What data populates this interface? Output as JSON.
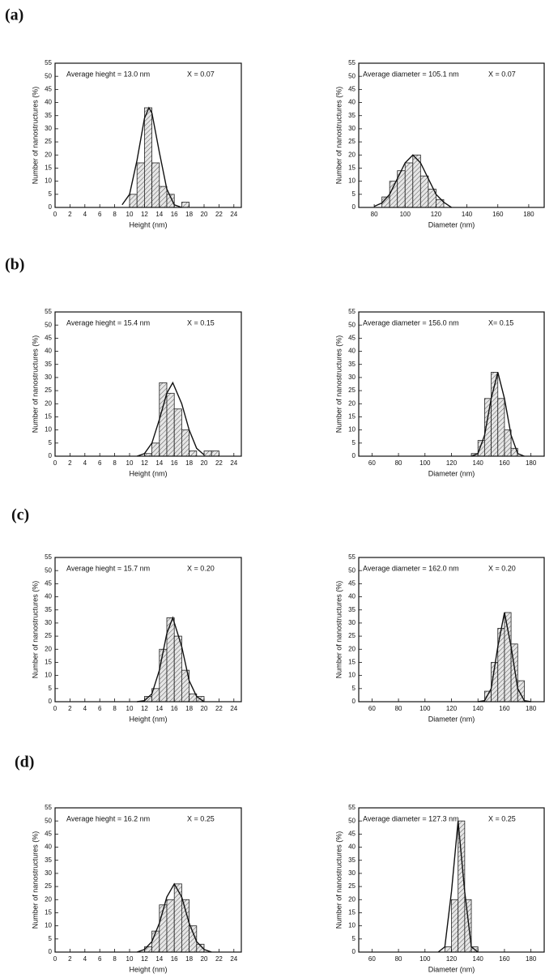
{
  "panels": [
    "(a)",
    "(b)",
    "(c)",
    "(d)"
  ],
  "chart_data": [
    {
      "type": "histogram",
      "annotations": [
        "Average hieght = 13.0 nm",
        "X = 0.07"
      ],
      "x_label": "Height (nm)",
      "y_label": "Number of nanostructures (%)",
      "bins": [
        10,
        11,
        12,
        13,
        14,
        15,
        16,
        17,
        18
      ],
      "values": [
        5,
        17,
        38,
        17,
        8,
        5,
        0,
        2
      ],
      "fit": {
        "x": [
          9,
          10,
          11,
          12,
          12.6,
          13,
          14,
          15,
          16,
          17
        ],
        "values": [
          1,
          5,
          18,
          34,
          38,
          36,
          21,
          7,
          1,
          0
        ]
      },
      "xlim": [
        0,
        25
      ],
      "xticks": [
        0,
        2,
        4,
        6,
        8,
        10,
        12,
        14,
        16,
        18,
        20,
        22,
        24
      ],
      "ylim": [
        0,
        55
      ],
      "yticks": [
        0,
        5,
        10,
        15,
        20,
        25,
        30,
        35,
        40,
        45,
        50,
        55
      ]
    },
    {
      "type": "histogram",
      "annotations": [
        "Average diameter = 105.1 nm",
        "X = 0.07"
      ],
      "x_label": "Diameter (nm)",
      "y_label": "Number of nanostructures (%)",
      "bins": [
        85,
        90,
        95,
        100,
        105,
        110,
        115,
        120,
        125
      ],
      "values": [
        4,
        10,
        14,
        17,
        20,
        12,
        7,
        3
      ],
      "fit": {
        "x": [
          80,
          85,
          90,
          95,
          100,
          105,
          110,
          115,
          120,
          125,
          130
        ],
        "values": [
          0.4,
          1.7,
          5,
          11,
          17,
          20,
          17,
          11,
          5,
          2,
          0
        ]
      },
      "xlim": [
        70,
        190
      ],
      "xticks": [
        80,
        100,
        120,
        140,
        160,
        180
      ],
      "ylim": [
        0,
        55
      ],
      "yticks": [
        0,
        5,
        10,
        15,
        20,
        25,
        30,
        35,
        40,
        45,
        50,
        55
      ]
    },
    {
      "type": "histogram",
      "annotations": [
        "Average hieght = 15.4 nm",
        "X = 0.15"
      ],
      "x_label": "Height (nm)",
      "y_label": "Number of nanostructures (%)",
      "bins": [
        12,
        13,
        14,
        15,
        16,
        17,
        18,
        19,
        20,
        21,
        22
      ],
      "values": [
        1,
        5,
        28,
        24,
        18,
        10,
        2,
        0,
        2,
        2
      ],
      "fit": {
        "x": [
          11,
          12,
          13,
          14,
          15,
          15.8,
          17,
          18,
          19,
          20
        ],
        "values": [
          0,
          1,
          5,
          14,
          24,
          28,
          20,
          10,
          3,
          0.5
        ]
      },
      "xlim": [
        0,
        25
      ],
      "xticks": [
        0,
        2,
        4,
        6,
        8,
        10,
        12,
        14,
        16,
        18,
        20,
        22,
        24
      ],
      "ylim": [
        0,
        55
      ],
      "yticks": [
        0,
        5,
        10,
        15,
        20,
        25,
        30,
        35,
        40,
        45,
        50,
        55
      ]
    },
    {
      "type": "histogram",
      "annotations": [
        "Average diameter = 156.0 nm",
        "X= 0.15"
      ],
      "x_label": "Diameter (nm)",
      "y_label": "Number of nanostructures (%)",
      "bins": [
        135,
        140,
        145,
        150,
        155,
        160,
        165,
        170
      ],
      "values": [
        1,
        6,
        22,
        32,
        22,
        10,
        3
      ],
      "fit": {
        "x": [
          135,
          140,
          145,
          150,
          155,
          160,
          165,
          170,
          175
        ],
        "values": [
          0,
          1,
          8,
          22,
          32,
          22,
          8,
          1,
          0
        ]
      },
      "xlim": [
        50,
        190
      ],
      "xticks": [
        60,
        80,
        100,
        120,
        140,
        160,
        180
      ],
      "ylim": [
        0,
        55
      ],
      "yticks": [
        0,
        5,
        10,
        15,
        20,
        25,
        30,
        35,
        40,
        45,
        50,
        55
      ]
    },
    {
      "type": "histogram",
      "annotations": [
        "Average hieght = 15.7 nm",
        "X = 0.20"
      ],
      "x_label": "Height (nm)",
      "y_label": "Number of nanostructures (%)",
      "bins": [
        12,
        13,
        14,
        15,
        16,
        17,
        18,
        19,
        20
      ],
      "values": [
        2,
        5,
        20,
        32,
        25,
        12,
        3,
        2
      ],
      "fit": {
        "x": [
          11,
          12,
          13,
          14,
          15,
          15.8,
          17,
          18,
          19,
          20
        ],
        "values": [
          0,
          0.4,
          3,
          12,
          26,
          32,
          21,
          8,
          2,
          0
        ]
      },
      "xlim": [
        0,
        25
      ],
      "xticks": [
        0,
        2,
        4,
        6,
        8,
        10,
        12,
        14,
        16,
        18,
        20,
        22,
        24
      ],
      "ylim": [
        0,
        55
      ],
      "yticks": [
        0,
        5,
        10,
        15,
        20,
        25,
        30,
        35,
        40,
        45,
        50,
        55
      ]
    },
    {
      "type": "histogram",
      "annotations": [
        "Average diameter = 162.0 nm",
        "X = 0.20"
      ],
      "x_label": "Diameter (nm)",
      "y_label": "Number of nanostructures (%)",
      "bins": [
        145,
        150,
        155,
        160,
        165,
        170,
        175
      ],
      "values": [
        4,
        15,
        28,
        34,
        22,
        8
      ],
      "fit": {
        "x": [
          140,
          145,
          150,
          155,
          160,
          165,
          170,
          175,
          180
        ],
        "values": [
          0,
          0.4,
          5,
          21,
          34,
          21,
          5,
          0.4,
          0
        ]
      },
      "xlim": [
        50,
        190
      ],
      "xticks": [
        60,
        80,
        100,
        120,
        140,
        160,
        180
      ],
      "ylim": [
        0,
        55
      ],
      "yticks": [
        0,
        5,
        10,
        15,
        20,
        25,
        30,
        35,
        40,
        45,
        50,
        55
      ]
    },
    {
      "type": "histogram",
      "annotations": [
        "Average hieght = 16.2 nm",
        "X = 0.25"
      ],
      "x_label": "Height (nm)",
      "y_label": "Number of nanostructures (%)",
      "bins": [
        12,
        13,
        14,
        15,
        16,
        17,
        18,
        19,
        20
      ],
      "values": [
        2,
        8,
        18,
        20,
        26,
        20,
        10,
        3
      ],
      "fit": {
        "x": [
          11,
          12,
          13,
          14,
          15,
          16,
          17,
          18,
          19,
          20,
          21
        ],
        "values": [
          0,
          1,
          4,
          11,
          21,
          26,
          21,
          11,
          4,
          1,
          0
        ]
      },
      "xlim": [
        0,
        25
      ],
      "xticks": [
        0,
        2,
        4,
        6,
        8,
        10,
        12,
        14,
        16,
        18,
        20,
        22,
        24
      ],
      "ylim": [
        0,
        55
      ],
      "yticks": [
        0,
        5,
        10,
        15,
        20,
        25,
        30,
        35,
        40,
        45,
        50,
        55
      ]
    },
    {
      "type": "histogram",
      "annotations": [
        "Average diameter = 127.3 nm",
        "X = 0.25"
      ],
      "x_label": "Diameter (nm)",
      "y_label": "Number of nanostructures (%)",
      "bins": [
        115,
        120,
        125,
        130,
        135,
        140
      ],
      "values": [
        2,
        20,
        50,
        20,
        2
      ],
      "fit": {
        "x": [
          110,
          115,
          120,
          125,
          130,
          135,
          140
        ],
        "values": [
          0,
          2,
          23,
          50,
          23,
          2,
          0
        ]
      },
      "xlim": [
        50,
        190
      ],
      "xticks": [
        60,
        80,
        100,
        120,
        140,
        160,
        180
      ],
      "ylim": [
        0,
        55
      ],
      "yticks": [
        0,
        5,
        10,
        15,
        20,
        25,
        30,
        35,
        40,
        45,
        50,
        55
      ]
    }
  ]
}
